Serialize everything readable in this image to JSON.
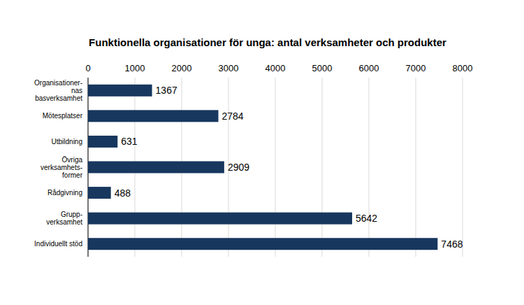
{
  "chart_data": {
    "type": "bar",
    "orientation": "horizontal",
    "title": "Funktionella organisationer för unga: antal verksamheter och produkter",
    "categories": [
      "Organisationer-\nnas\nbasverksamhet",
      "Mötesplatser",
      "Utbildning",
      "Övriga\nverksamhets-\nformer",
      "Rådgivning",
      "Grupp-\nverksamhet",
      "Individuellt stöd"
    ],
    "values": [
      1367,
      2784,
      631,
      2909,
      488,
      5642,
      7468
    ],
    "color": "#17375e",
    "xlim": [
      0,
      8000
    ],
    "xticks": [
      0,
      1000,
      2000,
      3000,
      4000,
      5000,
      6000,
      7000,
      8000
    ],
    "grid": true,
    "data_labels": true
  }
}
